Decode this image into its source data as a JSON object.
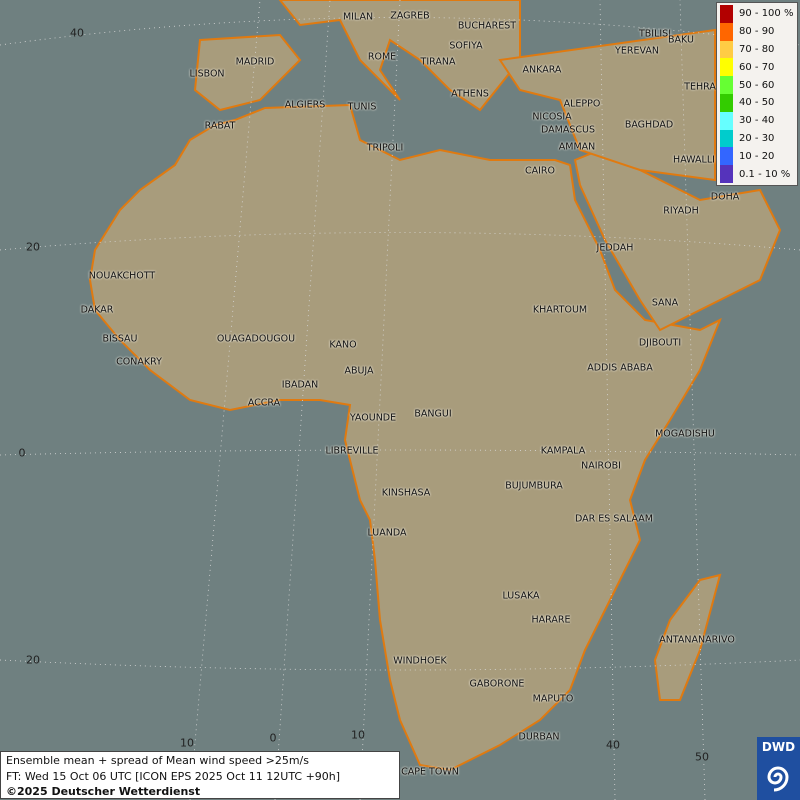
{
  "legend": {
    "title": "",
    "items": [
      {
        "label": "90 - 100 %",
        "color": "#b20000"
      },
      {
        "label": "80 - 90",
        "color": "#ff6600"
      },
      {
        "label": "70 - 80",
        "color": "#ffcc44"
      },
      {
        "label": "60 - 70",
        "color": "#ffff00"
      },
      {
        "label": "50 - 60",
        "color": "#66ff33"
      },
      {
        "label": "40 - 50",
        "color": "#33cc00"
      },
      {
        "label": "30 - 40",
        "color": "#66ffff"
      },
      {
        "label": "20 - 30",
        "color": "#00cccc"
      },
      {
        "label": "10 - 20",
        "color": "#3366ff"
      },
      {
        "label": "0.1 - 10 %",
        "color": "#5533bb"
      }
    ]
  },
  "info": {
    "line1": "Ensemble mean + spread of Mean wind speed >25m/s",
    "line2": "FT: Wed 15 Oct 06 UTC [ICON EPS 2025 Oct 11 12UTC +90h]",
    "line3": "©2025 Deutscher Wetterdienst"
  },
  "logo": {
    "text": "DWD"
  },
  "grid_labels": [
    "40",
    "20",
    "0",
    "20",
    "10",
    "0",
    "10",
    "40",
    "50"
  ],
  "cities": [
    "MILAN",
    "ZAGREB",
    "BUCHAREST",
    "TBILISI",
    "BAKU",
    "SOFIYA",
    "ROME",
    "TIRANA",
    "MADRID",
    "YEREVAN",
    "ANKARA",
    "LISBON",
    "TEHRA",
    "ATHENS",
    "ALGIERS",
    "TUNIS",
    "ALEPPO",
    "NICOSIA",
    "BAGHDAD",
    "RABAT",
    "DAMASCUS",
    "TRIPOLI",
    "AMMAN",
    "HAWALLI",
    "CAIRO",
    "DOHA",
    "RIYADH",
    "JEDDAH",
    "NOUAKCHOTT",
    "SANA",
    "DAKAR",
    "KHARTOUM",
    "BISSAU",
    "OUAGADOUGOU",
    "DJIBOUTI",
    "KANO",
    "CONAKRY",
    "ABUJA",
    "ADDIS ABABA",
    "IBADAN",
    "ACCRA",
    "YAOUNDE",
    "BANGUI",
    "MOGADISHU",
    "LIBREVILLE",
    "KAMPALA",
    "NAIROBI",
    "KINSHASA",
    "BUJUMBURA",
    "DAR ES SALAAM",
    "LUANDA",
    "LUSAKA",
    "HARARE",
    "ANTANANARIVO",
    "WINDHOEK",
    "GABORONE",
    "MAPUTO",
    "DURBAN",
    "CAPE TOWN"
  ]
}
